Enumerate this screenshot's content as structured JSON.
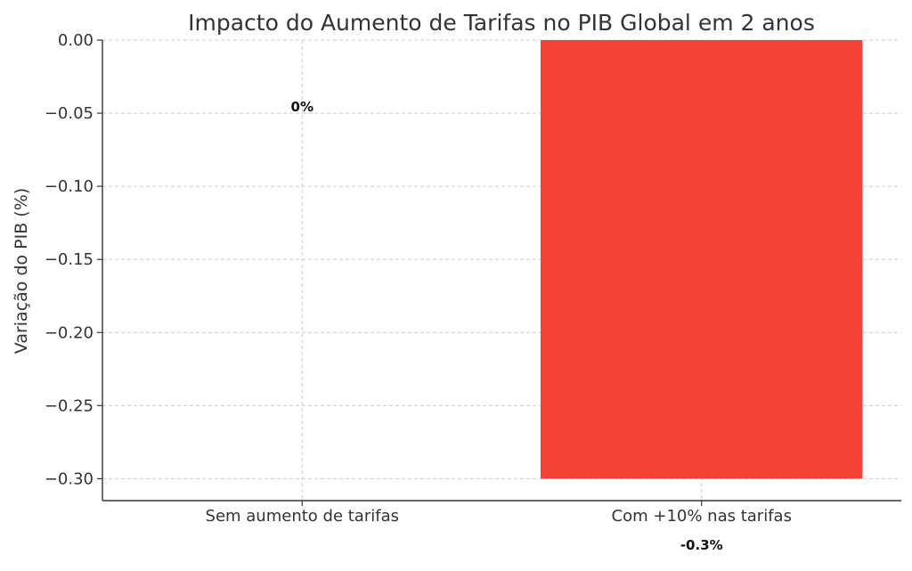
{
  "chart_data": {
    "type": "bar",
    "title": "Impacto do Aumento de Tarifas no PIB Global em 2 anos",
    "xlabel": "",
    "ylabel": "Variação do PIB (%)",
    "categories": [
      "Sem aumento de tarifas",
      "Com +10% nas tarifas"
    ],
    "values": [
      0,
      -0.3
    ],
    "data_labels": [
      "0%",
      "-0.3%"
    ],
    "colors": [
      "#ffffff",
      "#f44336"
    ],
    "ylim": [
      -0.315,
      0
    ],
    "yticks": [
      0.0,
      -0.05,
      -0.1,
      -0.15,
      -0.2,
      -0.25,
      -0.3
    ],
    "ytick_labels": [
      "0.00",
      "−0.05",
      "−0.10",
      "−0.15",
      "−0.20",
      "−0.25",
      "−0.30"
    ],
    "grid": true,
    "grid_color": "#cccccc",
    "text_color": "#333333"
  }
}
